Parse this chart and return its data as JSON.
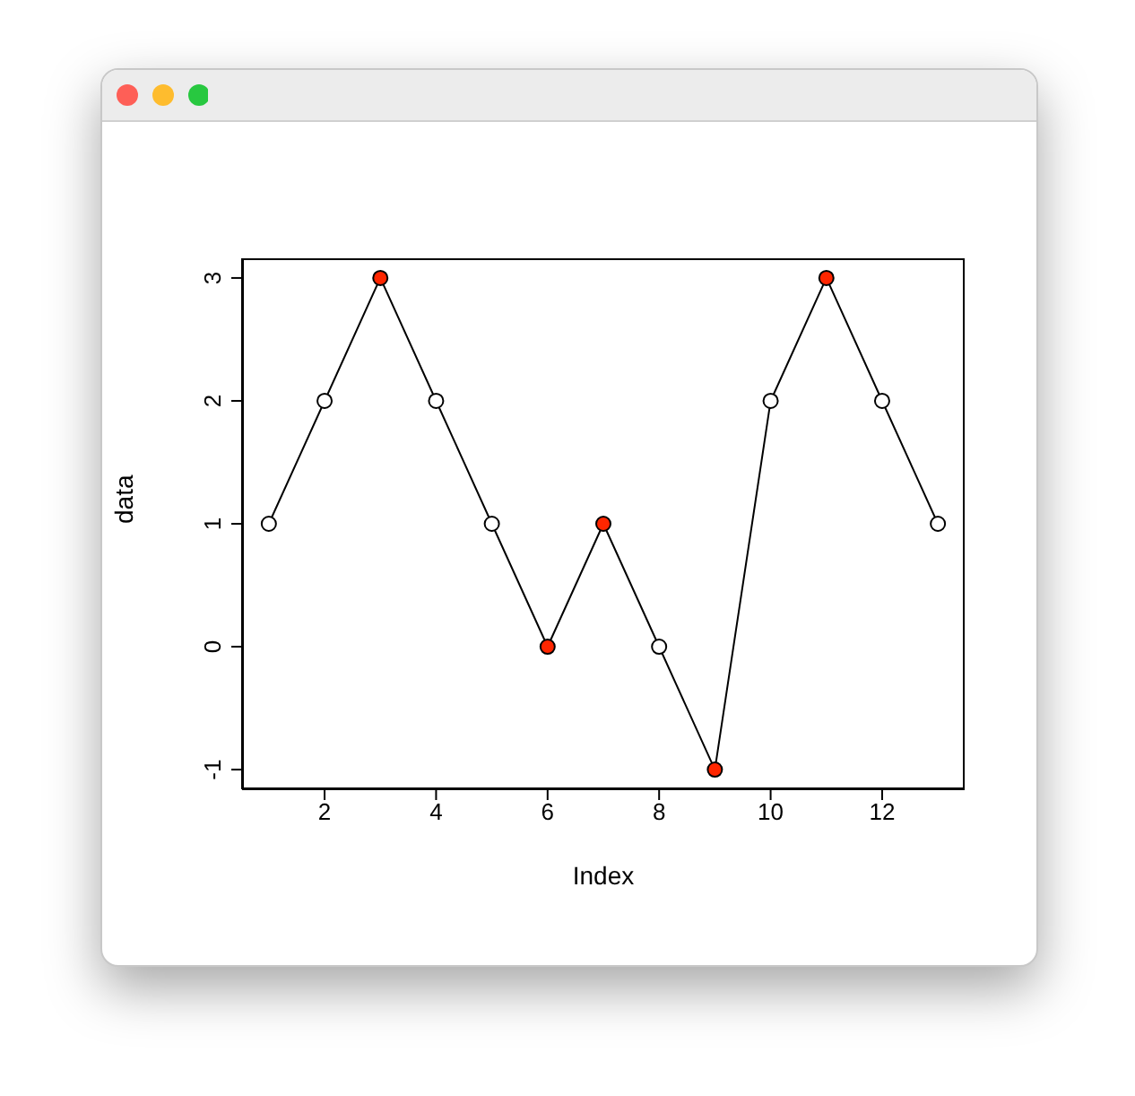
{
  "chart_data": {
    "type": "line",
    "xlabel": "Index",
    "ylabel": "data",
    "x": [
      1,
      2,
      3,
      4,
      5,
      6,
      7,
      8,
      9,
      10,
      11,
      12,
      13
    ],
    "values": [
      1,
      2,
      3,
      2,
      1,
      0,
      1,
      0,
      -1,
      2,
      3,
      2,
      1
    ],
    "color": "#000000",
    "colors": [
      "#ffffff",
      "#ffffff",
      "#ff2600",
      "#ffffff",
      "#ffffff",
      "#ff2600",
      "#ff2600",
      "#ffffff",
      "#ff2600",
      "#ffffff",
      "#ff2600",
      "#ffffff",
      "#ffffff"
    ],
    "xlim": [
      0.52,
      13.48
    ],
    "xticks": [
      2,
      4,
      6,
      8,
      10,
      12
    ],
    "ylim": [
      -1.16,
      3.16
    ],
    "yticks": [
      -1,
      0,
      1,
      2,
      3
    ],
    "grid": false,
    "marker": "circle"
  }
}
